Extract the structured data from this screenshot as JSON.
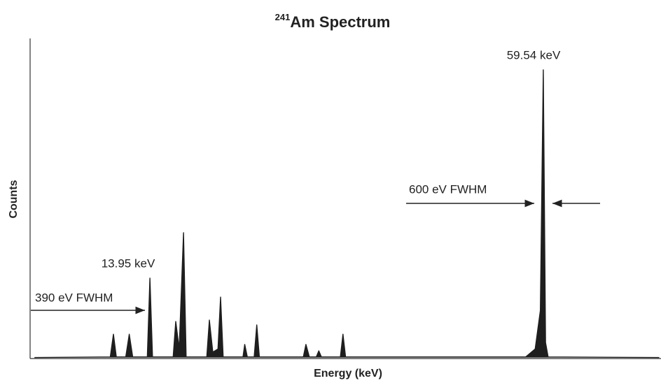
{
  "chart_data": {
    "type": "spectrum",
    "title_superscript": "241",
    "title": "Am Spectrum",
    "x_label": "Energy (keV)",
    "y_label": "Counts",
    "color": "#1e1e1e",
    "xlim": [
      0,
      73.2
    ],
    "ylim": [
      0,
      100
    ],
    "x": [
      0.5,
      9.3,
      9.67,
      10.0,
      11.1,
      11.5,
      11.9,
      13.6,
      13.9,
      14.2,
      16.6,
      16.9,
      17.3,
      17.8,
      18.1,
      20.5,
      20.8,
      21.2,
      21.8,
      22.1,
      22.4,
      24.7,
      24.9,
      25.2,
      26.0,
      26.3,
      26.6,
      31.7,
      32.0,
      32.4,
      33.2,
      33.5,
      33.8,
      36.0,
      36.3,
      36.6,
      57.5,
      58.6,
      59.2,
      59.54,
      59.8,
      60.1,
      73.0
    ],
    "values": [
      0.3,
      0.5,
      7.6,
      0.5,
      0.5,
      7.6,
      0.5,
      0.5,
      25.1,
      0.5,
      0.5,
      11.6,
      3,
      39.3,
      0.5,
      0.5,
      12,
      2,
      3,
      19.2,
      0.5,
      0.5,
      4.4,
      0.5,
      0.5,
      10.5,
      0.5,
      0.5,
      4.4,
      0.5,
      0.5,
      2.4,
      0.5,
      0.5,
      7.6,
      0.5,
      0.5,
      3,
      15,
      90.2,
      5,
      0.5,
      0.3
    ],
    "annotations": [
      "59.54 keV",
      "600 eV FWHM",
      "13.95 keV",
      "390 eV FWHM"
    ]
  }
}
